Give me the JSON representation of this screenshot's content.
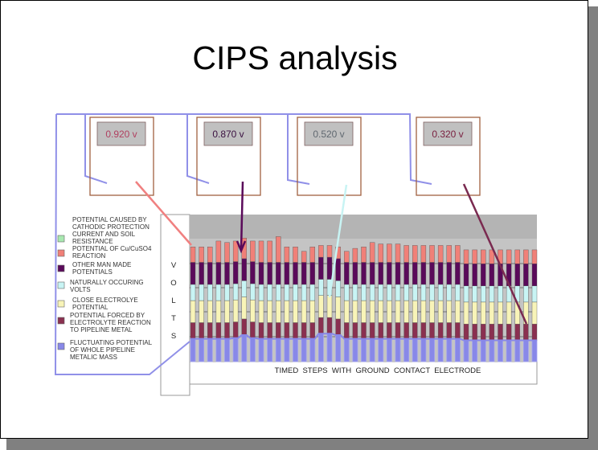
{
  "slide": {
    "title": "CIPS analysis"
  },
  "meters": [
    {
      "reading": "0.920 v",
      "text_color": "#b04060",
      "probe_color": "#f08080"
    },
    {
      "reading": "0.870 v",
      "text_color": "#3a1040",
      "probe_color": "#5a0a5a"
    },
    {
      "reading": "0.520 v",
      "text_color": "#606870",
      "probe_color": "#c8f4f4"
    },
    {
      "reading": "0.320 v",
      "text_color": "#7a2040",
      "probe_color": "#7a2a50"
    }
  ],
  "legend": [
    {
      "label_lines": [
        "POTENTIAL CAUSED BY",
        "CATHODIC PROTECTION",
        "CURRENT AND SOIL",
        "RESISTANCE"
      ],
      "color": "#a8e8b0"
    },
    {
      "label_lines": [
        "POTENTIAL OF Cu/CuSO4",
        "REACTION"
      ],
      "color": "#f08078"
    },
    {
      "label_lines": [
        "OTHER MAN MADE",
        "POTENTIALS"
      ],
      "color": "#5a0a5a"
    },
    {
      "label_lines": [
        "NATURALLY OCCURING",
        "VOLTS"
      ],
      "color": "#c8f4f4"
    },
    {
      "label_lines": [
        "CLOSE ELECTROLYE",
        "POTENTIAL"
      ],
      "color": "#f8f4b8"
    },
    {
      "label_lines": [
        "POTENTIAL FORCED BY",
        "ELECTROLYTE REACTION",
        "TO PIPELINE METAL"
      ],
      "color": "#8a3050"
    },
    {
      "label_lines": [
        "FLUCTUATING POTENTIAL",
        "OF WHOLE PIPELINE",
        "METALIC MASS"
      ],
      "color": "#8888e8"
    }
  ],
  "chart_data": {
    "type": "bar",
    "stacked": true,
    "ylabel": "VOLTS",
    "xlabel": "TIMED  STEPS  WITH  GROUND  CONTACT  ELECTRODE",
    "ylim": [
      0,
      100
    ],
    "grid": true,
    "series": [
      {
        "name": "FLUCTUATING POTENTIAL OF WHOLE PIPELINE METALIC MASS",
        "color": "#8888e8",
        "values": [
          15.5,
          15.5,
          15.5,
          15.5,
          15.5,
          16,
          18,
          16,
          15.5,
          15.5,
          15.5,
          15.5,
          15.5,
          15.5,
          15.5,
          19,
          19,
          18,
          15.5,
          15.5,
          15.5,
          15.5,
          15.5,
          15.5,
          15.5,
          15.5,
          15.5,
          15.5,
          15.5,
          15.5,
          15.5,
          15.5,
          14.5,
          14.5,
          14.5,
          14.5,
          14.5,
          14.5,
          14.5,
          14.5,
          14.5
        ]
      },
      {
        "name": "POTENTIAL FORCED BY ELECTROLYTE REACTION TO PIPELINE METAL",
        "color": "#8a3050",
        "values": [
          11,
          11,
          11,
          11,
          11,
          11,
          11,
          11,
          11,
          11,
          11,
          11,
          11,
          11,
          11,
          11,
          11,
          11,
          11,
          11,
          11,
          11,
          11,
          11,
          11,
          11,
          11,
          11,
          11,
          11,
          11,
          11,
          11,
          11,
          11,
          11,
          11,
          11,
          11,
          11,
          11
        ]
      },
      {
        "name": "CLOSE ELECTROLYE POTENTIAL",
        "color": "#f8f4b8",
        "values": [
          15,
          15,
          15,
          15,
          15,
          15,
          15,
          15,
          15,
          15,
          15,
          15,
          15,
          15,
          15,
          15,
          15,
          15,
          15,
          15,
          15,
          15,
          15,
          15,
          15,
          15,
          15,
          15,
          15,
          15,
          15,
          15,
          15,
          15,
          15,
          15,
          15,
          15,
          15,
          15,
          15
        ]
      },
      {
        "name": "NATURALLY OCCURING VOLTS",
        "color": "#c8f4f4",
        "values": [
          11,
          11,
          11,
          11,
          11,
          11,
          11,
          11,
          11,
          11,
          11,
          11,
          11,
          11,
          11,
          11,
          11,
          11,
          11,
          11,
          11,
          11,
          11,
          11,
          11,
          11,
          11,
          11,
          11,
          11,
          11,
          11,
          11,
          11,
          11,
          11,
          11,
          11,
          11,
          11,
          11
        ]
      },
      {
        "name": "OTHER MAN MADE POTENTIALS",
        "color": "#5a0a5a",
        "values": [
          15,
          15,
          15,
          15,
          15,
          15,
          15,
          15,
          15,
          15,
          15,
          15,
          15,
          15,
          15,
          15,
          15,
          15,
          15,
          15,
          15,
          15,
          15,
          15,
          15,
          15,
          15,
          15,
          15,
          15,
          15,
          15,
          15,
          15,
          15,
          15,
          15,
          15,
          15,
          15,
          15
        ]
      },
      {
        "name": "POTENTIAL OF Cu/CuSO4 REACTION",
        "color": "#f08078",
        "values": [
          10.5,
          10.5,
          10.5,
          14.5,
          13.5,
          14,
          14,
          14,
          14.5,
          14.5,
          17.5,
          10.5,
          10.5,
          7.5,
          10.5,
          8,
          8,
          8,
          7.5,
          9.5,
          10.5,
          13.5,
          12.5,
          12.5,
          12.5,
          11.5,
          11.5,
          11.5,
          11.5,
          11.5,
          11.5,
          11.5,
          9.5,
          9.5,
          9.5,
          9.5,
          9.5,
          9.5,
          9.5,
          9.5,
          9.5
        ]
      }
    ]
  },
  "colors": {
    "wire": "#9090e8",
    "meter_border": "#a06040",
    "display_bg": "#c0c0c0",
    "plot_bg": "#c0c0c0"
  }
}
